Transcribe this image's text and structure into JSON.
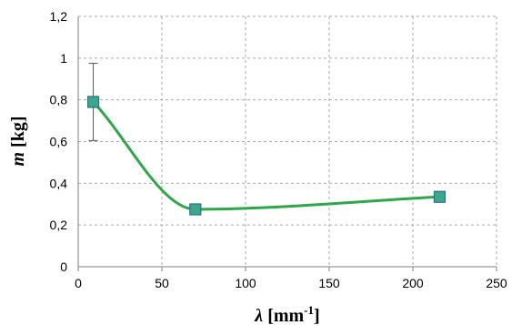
{
  "chart_data": {
    "type": "scatter",
    "title": "",
    "xlabel": {
      "symbol": "λ",
      "unit_prefix": " [mm",
      "unit_exponent": "-1",
      "unit_suffix": "]"
    },
    "ylabel": {
      "symbol": "m",
      "unit": " [kg]"
    },
    "xlim": [
      0,
      250
    ],
    "ylim": [
      0,
      1.2
    ],
    "x_ticks": [
      0,
      50,
      100,
      150,
      200,
      250
    ],
    "x_tick_labels": [
      "0",
      "50",
      "100",
      "150",
      "200",
      "250"
    ],
    "y_ticks": [
      0,
      0.2,
      0.4,
      0.6,
      0.8,
      1.0,
      1.2
    ],
    "y_tick_labels": [
      "0",
      "0,2",
      "0,4",
      "0,6",
      "0,8",
      "1",
      "1,2"
    ],
    "grid": "dashed",
    "legend": "none",
    "series": [
      {
        "x": [
          9,
          70,
          216
        ],
        "y": [
          0.79,
          0.275,
          0.335
        ],
        "error_bars": [
          0.185,
          0,
          0
        ],
        "smoothed_line": true,
        "marker": "square"
      }
    ],
    "colors": {
      "line": "#2ca84a",
      "marker_fill": "#3ba88c",
      "marker_edge": "#2f6e8f",
      "grid": "#a9a9a9",
      "axis": "#808080",
      "error_bar": "#555555"
    }
  }
}
